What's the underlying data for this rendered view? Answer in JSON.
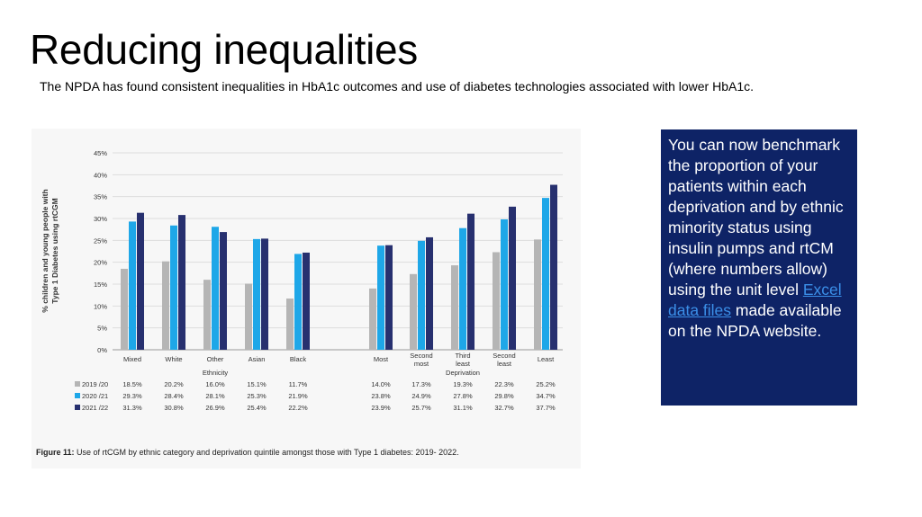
{
  "slide": {
    "title": "Reducing inequalities",
    "subtitle": "The NPDA has found consistent inequalities in HbA1c outcomes and use of diabetes technologies  associated with lower HbA1c."
  },
  "info_box": {
    "text_before": "You can now benchmark the proportion of your patients within each deprivation and by ethnic minority status using insulin pumps and rtCM (where numbers allow) using the unit level ",
    "link_text": "Excel data files",
    "text_after": " made available on the NPDA website."
  },
  "colors": {
    "series_2019": "#b5b5b5",
    "series_2020": "#1ea7e8",
    "series_2021": "#27306f",
    "info_box_bg": "#0e2366",
    "link": "#3b8fe8"
  },
  "chart_data": {
    "type": "bar",
    "ylabel": "% children and young people with Type 1 Diabetes using rtCGM",
    "ylim": [
      0,
      45
    ],
    "yticks": [
      "0%",
      "5%",
      "10%",
      "15%",
      "20%",
      "25%",
      "30%",
      "35%",
      "40%",
      "45%"
    ],
    "grid": true,
    "groups": [
      {
        "name": "Ethnicity",
        "categories": [
          "Mixed",
          "White",
          "Other",
          "Asian",
          "Black"
        ]
      },
      {
        "name": "Deprivation",
        "categories": [
          "Most",
          "Second most",
          "Third least",
          "Second least",
          "Least"
        ]
      }
    ],
    "series": [
      {
        "name": "2019 /20",
        "values": [
          18.5,
          20.2,
          16.0,
          15.1,
          11.7,
          14.0,
          17.3,
          19.3,
          22.3,
          25.2
        ],
        "labels": [
          "18.5%",
          "20.2%",
          "16.0%",
          "15.1%",
          "11.7%",
          "14.0%",
          "17.3%",
          "19.3%",
          "22.3%",
          "25.2%"
        ]
      },
      {
        "name": "2020 /21",
        "values": [
          29.3,
          28.4,
          28.1,
          25.3,
          21.9,
          23.8,
          24.9,
          27.8,
          29.8,
          34.7
        ],
        "labels": [
          "29.3%",
          "28.4%",
          "28.1%",
          "25.3%",
          "21.9%",
          "23.8%",
          "24.9%",
          "27.8%",
          "29.8%",
          "34.7%"
        ]
      },
      {
        "name": "2021 /22",
        "values": [
          31.3,
          30.8,
          26.9,
          25.4,
          22.2,
          23.9,
          25.7,
          31.1,
          32.7,
          37.7
        ],
        "labels": [
          "31.3%",
          "30.8%",
          "26.9%",
          "25.4%",
          "22.2%",
          "23.9%",
          "25.7%",
          "31.1%",
          "32.7%",
          "37.7%"
        ]
      }
    ],
    "caption_bold": "Figure 11:",
    "caption": " Use of rtCGM by ethnic category and deprivation quintile amongst those with Type 1 diabetes: 2019- 2022."
  }
}
